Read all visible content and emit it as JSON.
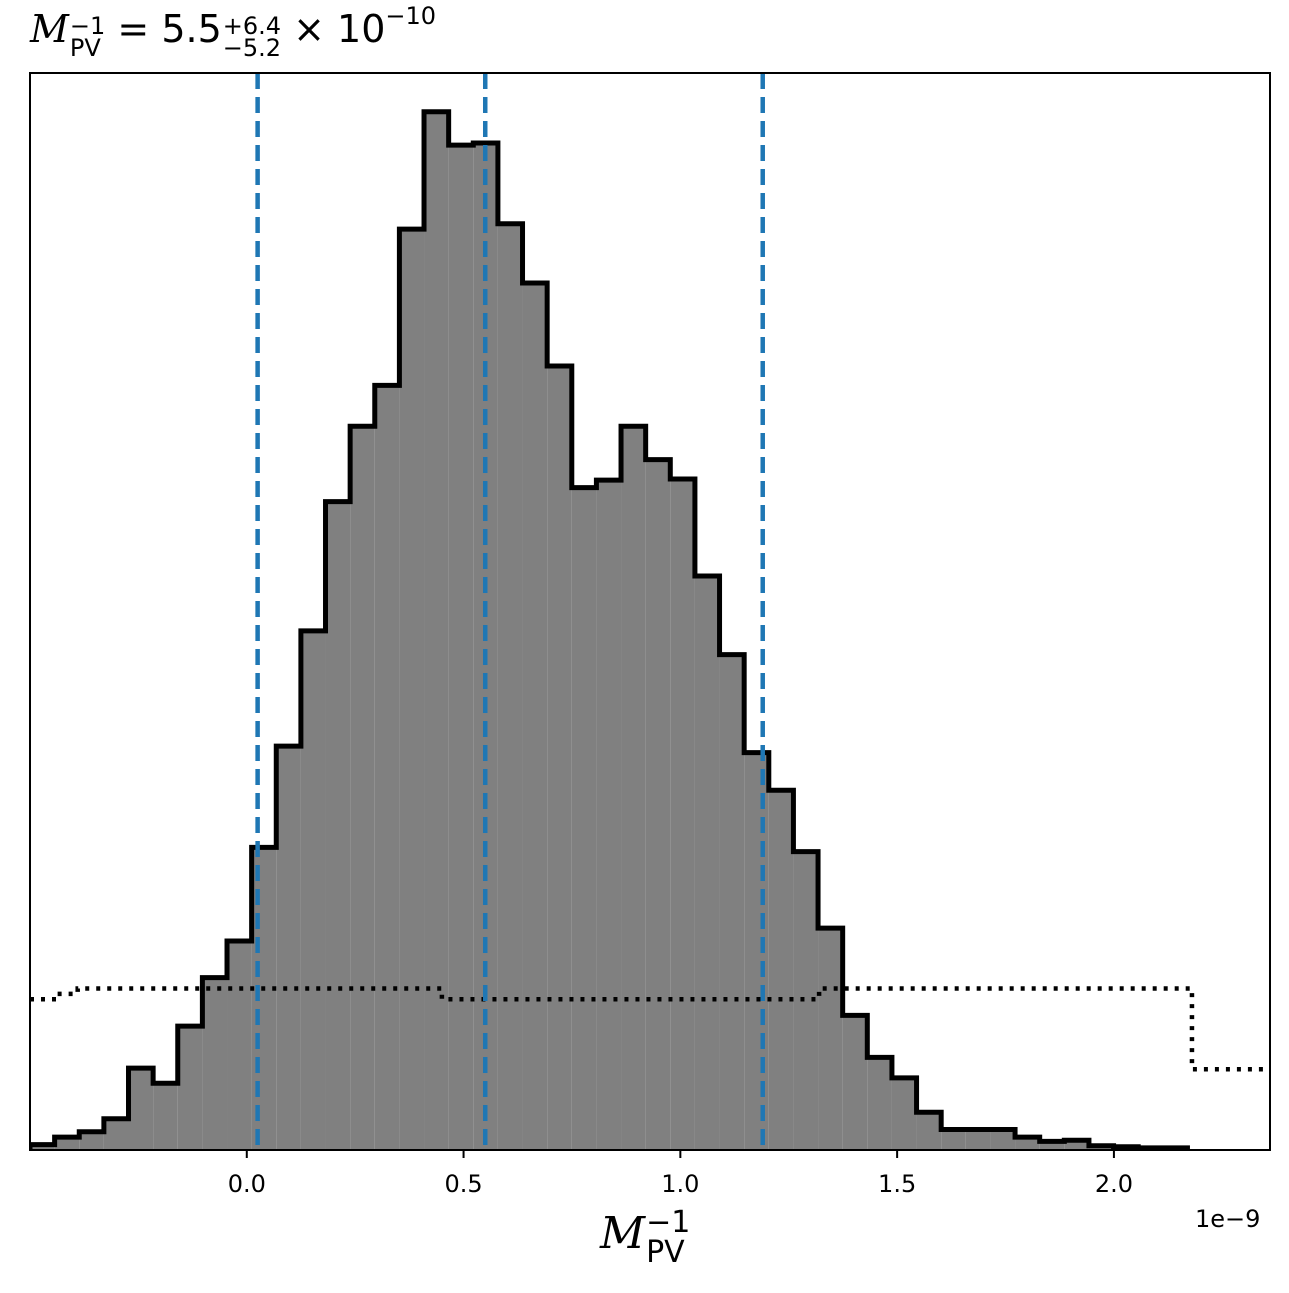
{
  "title": {
    "lhs_symbol": "M",
    "lhs_sub": "PV",
    "lhs_sup": "−1",
    "equals": " = ",
    "median": "5.5",
    "upper_err": "+6.4",
    "lower_err": "−5.2",
    "times": " × 10",
    "exponent": "−10"
  },
  "xlabel": {
    "symbol": "M",
    "sub": "PV",
    "sup": "−1"
  },
  "axis_offset_text": "1e−9",
  "chart_data": {
    "type": "histogram",
    "xlim": [
      -0.5,
      2.36
    ],
    "ylim": [
      0,
      100
    ],
    "x_scale_note": "values in units of 1e-9",
    "xticks": [
      0.0,
      0.5,
      1.0,
      1.5,
      2.0
    ],
    "xtick_labels": [
      "0.0",
      "0.5",
      "1.0",
      "1.5",
      "2.0"
    ],
    "bins": {
      "start": -0.5,
      "width": 0.0568,
      "heights": [
        0.5,
        1.2,
        1.7,
        2.9,
        7.6,
        6.2,
        11.5,
        16.0,
        19.4,
        28.1,
        37.5,
        48.2,
        60.2,
        67.2,
        71.0,
        85.5,
        96.4,
        93.3,
        93.5,
        86.0,
        80.5,
        72.8,
        61.5,
        62.2,
        67.2,
        64.1,
        62.3,
        53.3,
        46.0,
        36.9,
        33.4,
        27.7,
        20.6,
        12.5,
        8.6,
        6.7,
        3.5,
        1.9,
        1.9,
        1.9,
        1.2,
        0.8,
        0.9,
        0.4,
        0.3,
        0.2,
        0.2
      ]
    },
    "reference_lines": [
      0.025,
      0.55,
      1.19
    ],
    "reference_line_color": "#1f77b4",
    "prior_step": {
      "edges": [
        -0.5,
        -0.44,
        -0.39,
        0.42,
        0.45,
        1.28,
        1.32,
        2.17,
        2.18,
        2.36
      ],
      "heights": [
        14.0,
        14.5,
        15.0,
        15.0,
        14.0,
        14.0,
        15.0,
        15.0,
        7.5,
        7.5
      ]
    },
    "hist_fill": "#808080",
    "hist_edge": "#000000"
  }
}
